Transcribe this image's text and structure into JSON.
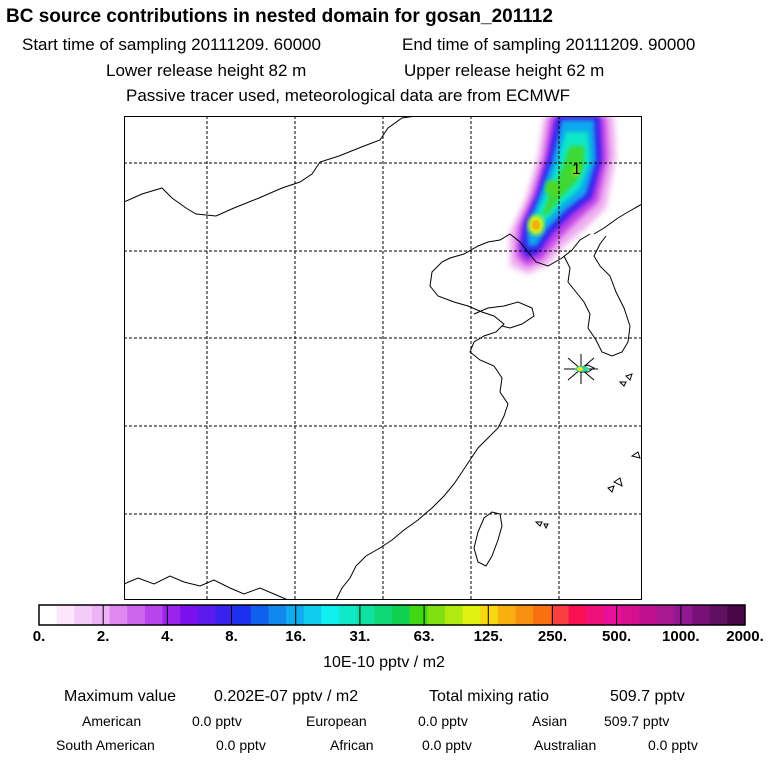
{
  "header": {
    "title": "BC  source contributions in nested domain for gosan_201112",
    "start_label": "Start time of sampling 20111209. 60000",
    "end_label": "End time of sampling 20111209. 90000",
    "lower_release": "Lower release height   82 m",
    "upper_release": "Upper release height   62 m",
    "tracer_note": "Passive tracer used, meteorological data are from ECMWF"
  },
  "map": {
    "plume_marker_label": "1",
    "receptor": "Gosan station marker",
    "colors": {
      "coast": "#000000",
      "grid": "#000000"
    }
  },
  "colorbar": {
    "colors": [
      "#ffffff",
      "#fbe6fb",
      "#f5ccf8",
      "#eeb2f6",
      "#e088f0",
      "#cc66ee",
      "#b844ee",
      "#9c22ee",
      "#7a10ee",
      "#5c1aee",
      "#3a22ee",
      "#1a30ee",
      "#1060ee",
      "#1088ee",
      "#10aaee",
      "#10ccee",
      "#10f0f0",
      "#10e8c8",
      "#10e0a0",
      "#10d878",
      "#10d050",
      "#40d810",
      "#80e010",
      "#b0ea10",
      "#e0f010",
      "#f8d810",
      "#f8b010",
      "#f89010",
      "#f87010",
      "#f84040",
      "#f81050",
      "#f0107a",
      "#e8109a",
      "#d81090",
      "#c01090",
      "#a81890",
      "#901890",
      "#781078",
      "#601060",
      "#480848"
    ],
    "labels": [
      "0.",
      "2.",
      "4.",
      "8.",
      "16.",
      "31.",
      "63.",
      "125.",
      "250.",
      "500.",
      "1000.",
      "2000."
    ],
    "unit": "10E-10 pptv / m2"
  },
  "stats": {
    "max_label": "Maximum value",
    "max_value": "0.202E-07 pptv / m2",
    "total_label": "Total mixing ratio",
    "total_value": "509.7 pptv"
  },
  "regions": [
    {
      "name": "American",
      "value": "0.0 pptv"
    },
    {
      "name": "European",
      "value": "0.0 pptv"
    },
    {
      "name": "Asian",
      "value": "509.7 pptv"
    },
    {
      "name": "South American",
      "value": "0.0 pptv"
    },
    {
      "name": "African",
      "value": "0.0 pptv"
    },
    {
      "name": "Australian",
      "value": "0.0 pptv"
    }
  ]
}
